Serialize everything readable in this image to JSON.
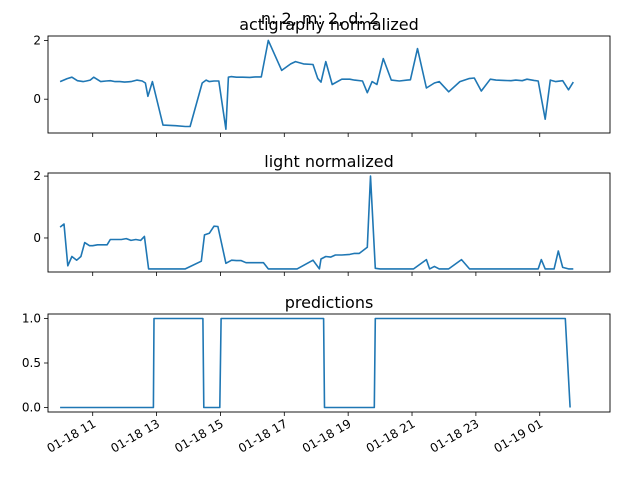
{
  "chart_data": {
    "suptitle": "n: 2, m: 2, d: 2",
    "x_ticks": [
      "01-18 11",
      "01-18 13",
      "01-18 15",
      "01-18 17",
      "01-18 19",
      "01-18 21",
      "01-18 23",
      "01-19 01"
    ],
    "x_tick_hours": [
      11,
      13,
      15,
      17,
      19,
      21,
      23,
      25
    ],
    "xlim_hours": [
      9.6,
      27.2
    ],
    "panels": [
      {
        "type": "line",
        "title": "actigraphy normalized",
        "ylim": [
          -1.15,
          2.15
        ],
        "y_ticks": [
          0,
          2
        ],
        "series": [
          {
            "x": [
              9.98,
              10.2,
              10.35,
              10.52,
              10.7,
              10.8,
              10.92,
              11.03,
              11.25,
              11.42,
              11.55,
              11.7,
              11.85,
              12.0,
              12.2,
              12.38,
              12.55,
              12.65,
              12.73,
              12.87,
              13.2,
              13.6,
              13.9,
              14.05,
              14.43,
              14.55,
              14.65,
              14.8,
              14.95,
              15.17,
              15.25,
              15.33,
              15.5,
              15.7,
              15.92,
              16.1,
              16.28,
              16.5,
              16.92,
              17.2,
              17.35,
              17.6,
              17.9,
              18.05,
              18.15,
              18.3,
              18.5,
              18.8,
              19.05,
              19.2,
              19.45,
              19.6,
              19.75,
              19.9,
              20.1,
              20.35,
              20.6,
              20.85,
              20.95,
              21.17,
              21.45,
              21.7,
              21.85,
              22.15,
              22.5,
              22.78,
              22.95,
              23.17,
              23.45,
              23.63,
              23.88,
              24.1,
              24.25,
              24.45,
              24.6,
              24.82,
              24.95,
              25.17,
              25.33,
              25.5,
              25.72,
              25.9,
              26.05
            ],
            "y": [
              0.6,
              0.7,
              0.75,
              0.63,
              0.6,
              0.62,
              0.65,
              0.75,
              0.6,
              0.62,
              0.63,
              0.6,
              0.6,
              0.58,
              0.6,
              0.65,
              0.62,
              0.55,
              0.1,
              0.6,
              -0.88,
              -0.9,
              -0.93,
              -0.93,
              0.55,
              0.65,
              0.6,
              0.62,
              0.62,
              -1.02,
              0.75,
              0.77,
              0.75,
              0.75,
              0.74,
              0.76,
              0.76,
              2.0,
              0.98,
              1.2,
              1.28,
              1.2,
              1.18,
              0.7,
              0.58,
              1.28,
              0.5,
              0.68,
              0.68,
              0.65,
              0.62,
              0.22,
              0.6,
              0.5,
              1.38,
              0.65,
              0.62,
              0.65,
              0.66,
              1.72,
              0.38,
              0.55,
              0.6,
              0.25,
              0.6,
              0.7,
              0.72,
              0.28,
              0.68,
              0.65,
              0.64,
              0.63,
              0.65,
              0.63,
              0.68,
              0.64,
              0.62,
              -0.68,
              0.65,
              0.6,
              0.63,
              0.32,
              0.58
            ]
          }
        ]
      },
      {
        "type": "line",
        "title": "light normalized",
        "ylim": [
          -1.1,
          2.1
        ],
        "y_ticks": [
          0,
          2
        ],
        "series": [
          {
            "x": [
              9.98,
              10.1,
              10.22,
              10.35,
              10.5,
              10.63,
              10.75,
              10.9,
              11.0,
              11.15,
              11.45,
              11.55,
              11.7,
              11.9,
              12.05,
              12.2,
              12.35,
              12.5,
              12.62,
              12.75,
              12.87,
              13.2,
              13.9,
              14.4,
              14.5,
              14.65,
              14.8,
              14.92,
              15.17,
              15.35,
              15.5,
              15.65,
              15.8,
              16.0,
              16.1,
              16.35,
              16.5,
              16.8,
              17.1,
              17.4,
              17.9,
              18.1,
              18.15,
              18.3,
              18.45,
              18.6,
              18.8,
              19.05,
              19.2,
              19.35,
              19.6,
              19.7,
              19.85,
              20.0,
              20.2,
              20.6,
              21.05,
              21.45,
              21.55,
              21.7,
              21.85,
              22.15,
              22.55,
              22.8,
              22.95,
              23.2,
              24.2,
              24.5,
              24.95,
              25.05,
              25.17,
              25.33,
              25.45,
              25.58,
              25.72,
              25.9,
              26.05
            ],
            "y": [
              0.35,
              0.45,
              -0.9,
              -0.6,
              -0.72,
              -0.6,
              -0.15,
              -0.25,
              -0.25,
              -0.22,
              -0.22,
              -0.05,
              -0.05,
              -0.05,
              -0.02,
              -0.08,
              -0.05,
              -0.08,
              0.05,
              -1.0,
              -1.0,
              -1.0,
              -1.0,
              -0.75,
              0.1,
              0.15,
              0.38,
              0.37,
              -0.82,
              -0.72,
              -0.73,
              -0.73,
              -0.8,
              -0.8,
              -0.8,
              -0.8,
              -1.0,
              -1.0,
              -1.0,
              -1.0,
              -0.72,
              -1.0,
              -0.68,
              -0.6,
              -0.62,
              -0.55,
              -0.55,
              -0.53,
              -0.5,
              -0.5,
              -0.3,
              2.0,
              -0.98,
              -1.0,
              -1.0,
              -1.0,
              -1.0,
              -0.7,
              -1.0,
              -0.92,
              -1.0,
              -1.0,
              -0.7,
              -1.0,
              -1.0,
              -1.0,
              -1.0,
              -1.0,
              -1.0,
              -0.7,
              -1.0,
              -1.0,
              -1.0,
              -0.42,
              -0.95,
              -1.0,
              -1.0
            ]
          }
        ]
      },
      {
        "type": "line",
        "title": "predictions",
        "ylim": [
          -0.05,
          1.05
        ],
        "y_ticks": [
          0.0,
          0.5,
          1.0
        ],
        "y_tick_labels": [
          "0.0",
          "0.5",
          "1.0"
        ],
        "series": [
          {
            "x": [
              9.98,
              12.9,
              12.92,
              14.45,
              14.48,
              14.98,
              15.02,
              18.23,
              18.26,
              19.82,
              19.85,
              25.8,
              25.95
            ],
            "y": [
              0,
              0,
              1,
              1,
              0,
              0,
              1,
              1,
              0,
              0,
              1,
              1,
              0
            ]
          }
        ]
      }
    ]
  }
}
